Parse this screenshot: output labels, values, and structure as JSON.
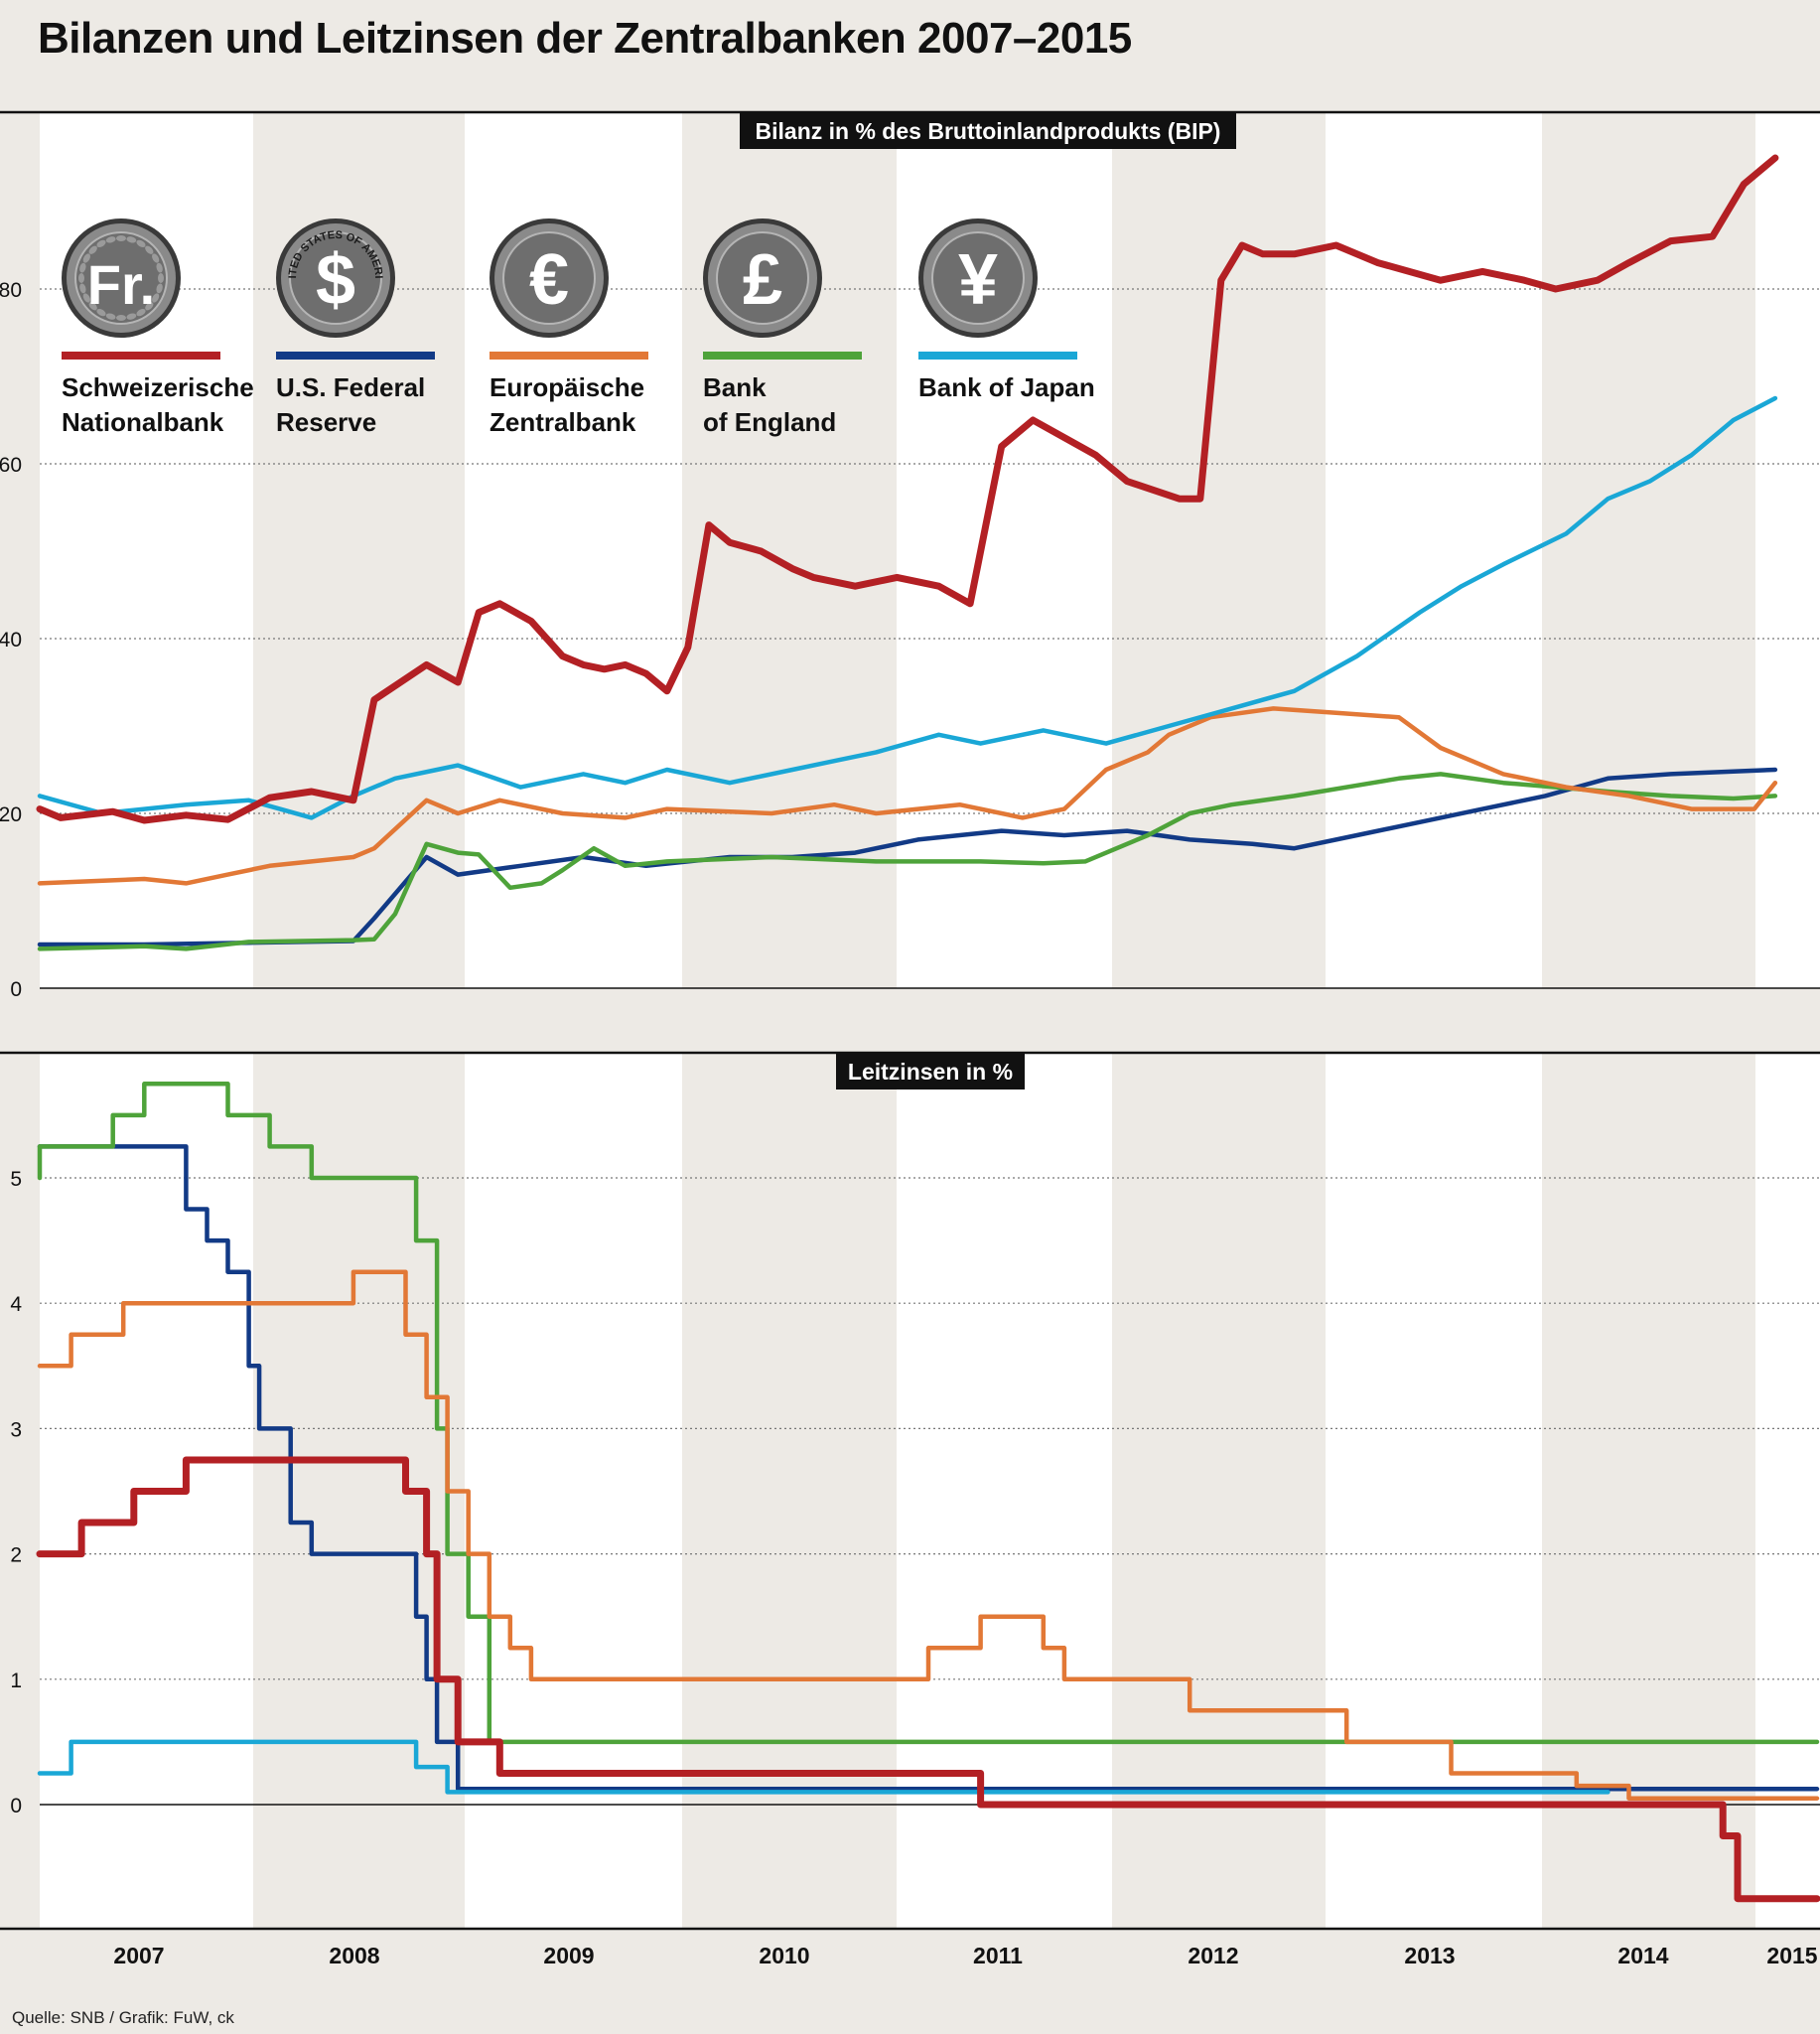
{
  "title": "Bilanzen und Leitzinsen der Zentralbanken 2007–2015",
  "source": "Quelle: SNB / Grafik: FuW, ck",
  "years": [
    "2007",
    "2008",
    "2009",
    "2010",
    "2011",
    "2012",
    "2013",
    "2014",
    "2015"
  ],
  "colors": {
    "snb": "#b32024",
    "fed": "#123a86",
    "ecb": "#e27836",
    "boe": "#4ea33a",
    "boj": "#1aa7d6",
    "band": "#edeae5",
    "white": "#ffffff",
    "grid": "#777777"
  },
  "legend": [
    {
      "key": "snb",
      "symbol": "Fr.",
      "icon": "swiss-franc-coin-icon",
      "label_line1": "Schweizerische",
      "label_line2": "Nationalbank"
    },
    {
      "key": "fed",
      "symbol": "$",
      "icon": "dollar-coin-icon",
      "coin_text": "UNITED STATES OF AMERICA",
      "label_line1": "U.S. Federal",
      "label_line2": "Reserve"
    },
    {
      "key": "ecb",
      "symbol": "€",
      "icon": "euro-coin-icon",
      "label_line1": "Europäische",
      "label_line2": "Zentralbank"
    },
    {
      "key": "boe",
      "symbol": "£",
      "icon": "pound-coin-icon",
      "label_line1": "Bank",
      "label_line2": "of England"
    },
    {
      "key": "boj",
      "symbol": "¥",
      "icon": "yen-coin-icon",
      "label_line1": "Bank of Japan",
      "label_line2": ""
    }
  ],
  "chart_data": [
    {
      "type": "line",
      "title": "Bilanz in % des Bruttoinlandprodukts (BIP)",
      "xlabel": "",
      "ylabel": "",
      "xlim": [
        2007.0,
        2015.5
      ],
      "ylim": [
        0,
        100
      ],
      "yticks": [
        0,
        20,
        40,
        60,
        80
      ],
      "grid": true,
      "series": [
        {
          "key": "snb",
          "name": "Schweizerische Nationalbank",
          "x": [
            2007.0,
            2007.1,
            2007.35,
            2007.5,
            2007.7,
            2007.9,
            2008.1,
            2008.3,
            2008.5,
            2008.6,
            2008.85,
            2009.0,
            2009.1,
            2009.2,
            2009.35,
            2009.5,
            2009.6,
            2009.7,
            2009.8,
            2009.9,
            2010.0,
            2010.1,
            2010.2,
            2010.3,
            2010.45,
            2010.6,
            2010.7,
            2010.9,
            2011.1,
            2011.3,
            2011.45,
            2011.6,
            2011.75,
            2012.05,
            2012.2,
            2012.45,
            2012.55,
            2012.65,
            2012.75,
            2012.85,
            2013.0,
            2013.2,
            2013.4,
            2013.7,
            2013.9,
            2014.1,
            2014.25,
            2014.45,
            2014.6,
            2014.8,
            2015.0,
            2015.15,
            2015.3
          ],
          "y": [
            20.5,
            19.5,
            20.2,
            19.2,
            19.8,
            19.3,
            21.8,
            22.5,
            21.5,
            33,
            37,
            35,
            43,
            44,
            42,
            38,
            37,
            36.5,
            37,
            36,
            34,
            39,
            53,
            51,
            50,
            48,
            47,
            46,
            47,
            46,
            44,
            62,
            65,
            61,
            58,
            56,
            56,
            81,
            85,
            84,
            84,
            85,
            83,
            81,
            82,
            81,
            80,
            81,
            83,
            85.5,
            86,
            92,
            95
          ]
        },
        {
          "key": "fed",
          "name": "U.S. Federal Reserve",
          "x": [
            2007.0,
            2007.5,
            2008.0,
            2008.5,
            2008.6,
            2008.85,
            2009.0,
            2009.3,
            2009.6,
            2009.9,
            2010.3,
            2010.6,
            2010.9,
            2011.2,
            2011.6,
            2011.9,
            2012.2,
            2012.5,
            2012.8,
            2013.0,
            2013.3,
            2013.6,
            2013.9,
            2014.2,
            2014.5,
            2014.8,
            2015.1,
            2015.3
          ],
          "y": [
            5,
            5,
            5.2,
            5.4,
            8,
            15,
            13,
            14,
            15,
            14,
            15,
            15,
            15.5,
            17,
            18,
            17.5,
            18,
            17,
            16.5,
            16,
            17.5,
            19,
            20.5,
            22,
            24,
            24.5,
            24.8,
            25
          ]
        },
        {
          "key": "ecb",
          "name": "Europäische Zentralbank",
          "x": [
            2007.0,
            2007.5,
            2007.7,
            2007.9,
            2008.1,
            2008.3,
            2008.5,
            2008.6,
            2008.85,
            2009.0,
            2009.2,
            2009.5,
            2009.8,
            2010.0,
            2010.5,
            2010.8,
            2011.0,
            2011.4,
            2011.7,
            2011.9,
            2012.1,
            2012.3,
            2012.4,
            2012.6,
            2012.9,
            2013.2,
            2013.5,
            2013.7,
            2014.0,
            2014.3,
            2014.6,
            2014.9,
            2015.2,
            2015.3
          ],
          "y": [
            12,
            12.5,
            12,
            13,
            14,
            14.5,
            15,
            16,
            21.5,
            20,
            21.5,
            20,
            19.5,
            20.5,
            20,
            21,
            20,
            21,
            19.5,
            20.5,
            25,
            27,
            29,
            31,
            32,
            31.5,
            31,
            27.5,
            24.5,
            23,
            22,
            20.5,
            20.5,
            23.5
          ]
        },
        {
          "key": "boe",
          "name": "Bank of England",
          "x": [
            2007.0,
            2007.5,
            2007.7,
            2008.0,
            2008.5,
            2008.6,
            2008.7,
            2008.85,
            2009.0,
            2009.1,
            2009.25,
            2009.4,
            2009.5,
            2009.65,
            2009.8,
            2010.0,
            2010.5,
            2011.0,
            2011.5,
            2011.8,
            2012.0,
            2012.3,
            2012.5,
            2012.7,
            2013.0,
            2013.5,
            2013.7,
            2014.0,
            2014.5,
            2014.8,
            2015.1,
            2015.3
          ],
          "y": [
            4.5,
            4.8,
            4.5,
            5.3,
            5.5,
            5.6,
            8.5,
            16.5,
            15.5,
            15.3,
            11.5,
            12,
            13.5,
            16,
            14,
            14.5,
            15,
            14.5,
            14.5,
            14.3,
            14.5,
            17.5,
            20,
            21,
            22,
            24,
            24.5,
            23.5,
            22.5,
            22,
            21.7,
            22
          ]
        },
        {
          "key": "boj",
          "name": "Bank of Japan",
          "x": [
            2007.0,
            2007.3,
            2007.5,
            2007.7,
            2008.0,
            2008.3,
            2008.5,
            2008.7,
            2008.9,
            2009.0,
            2009.3,
            2009.6,
            2009.8,
            2010.0,
            2010.3,
            2010.6,
            2010.8,
            2011.0,
            2011.3,
            2011.5,
            2011.8,
            2012.1,
            2012.4,
            2012.7,
            2013.0,
            2013.3,
            2013.6,
            2013.8,
            2014.0,
            2014.3,
            2014.5,
            2014.7,
            2014.9,
            2015.1,
            2015.3
          ],
          "y": [
            22,
            20,
            20.5,
            21,
            21.5,
            19.5,
            22,
            24,
            25,
            25.5,
            23,
            24.5,
            23.5,
            25,
            23.5,
            25,
            26,
            27,
            29,
            28,
            29.5,
            28,
            30,
            32,
            34,
            38,
            43,
            46,
            48.5,
            52,
            56,
            58,
            61,
            65,
            67.5
          ]
        }
      ]
    },
    {
      "type": "line",
      "title": "Leitzinsen in %",
      "xlabel": "",
      "ylabel": "",
      "xlim": [
        2007.0,
        2015.5
      ],
      "ylim": [
        -0.8,
        6.0
      ],
      "yticks": [
        0,
        1,
        2,
        3,
        4,
        5
      ],
      "grid": true,
      "series": [
        {
          "key": "snb",
          "name": "Schweizerische Nationalbank",
          "x": [
            2007.0,
            2007.2,
            2007.2,
            2007.45,
            2007.45,
            2007.7,
            2007.7,
            2008.75,
            2008.75,
            2008.85,
            2008.85,
            2008.9,
            2008.9,
            2009.0,
            2009.0,
            2009.2,
            2009.2,
            2011.5,
            2011.5,
            2015.05,
            2015.05,
            2015.12,
            2015.12,
            2015.5
          ],
          "y": [
            2,
            2,
            2.25,
            2.25,
            2.5,
            2.5,
            2.75,
            2.75,
            2.5,
            2.5,
            2,
            2,
            1,
            1,
            0.5,
            0.5,
            0.25,
            0.25,
            0,
            0,
            -0.25,
            -0.25,
            -0.75,
            -0.75
          ]
        },
        {
          "key": "fed",
          "name": "U.S. Federal Reserve",
          "x": [
            2007.0,
            2007.7,
            2007.7,
            2007.8,
            2007.8,
            2007.9,
            2007.9,
            2008.0,
            2008.0,
            2008.05,
            2008.05,
            2008.2,
            2008.2,
            2008.3,
            2008.3,
            2008.8,
            2008.8,
            2008.85,
            2008.85,
            2008.9,
            2008.9,
            2009.0,
            2009.0,
            2015.5
          ],
          "y": [
            5.25,
            5.25,
            4.75,
            4.75,
            4.5,
            4.5,
            4.25,
            4.25,
            3.5,
            3.5,
            3,
            3,
            2.25,
            2.25,
            2,
            2,
            1.5,
            1.5,
            1,
            1,
            0.5,
            0.5,
            0.125,
            0.125
          ]
        },
        {
          "key": "ecb",
          "name": "Europäische Zentralbank",
          "x": [
            2007.0,
            2007.15,
            2007.15,
            2007.4,
            2007.4,
            2008.5,
            2008.5,
            2008.75,
            2008.75,
            2008.85,
            2008.85,
            2008.95,
            2008.95,
            2009.05,
            2009.05,
            2009.15,
            2009.15,
            2009.25,
            2009.25,
            2009.35,
            2009.35,
            2011.25,
            2011.25,
            2011.5,
            2011.5,
            2011.8,
            2011.8,
            2011.9,
            2011.9,
            2012.5,
            2012.5,
            2013.25,
            2013.25,
            2013.75,
            2013.75,
            2014.35,
            2014.35,
            2014.6,
            2014.6,
            2015.5
          ],
          "y": [
            3.5,
            3.5,
            3.75,
            3.75,
            4,
            4,
            4.25,
            4.25,
            3.75,
            3.75,
            3.25,
            3.25,
            2.5,
            2.5,
            2,
            2,
            1.5,
            1.5,
            1.25,
            1.25,
            1,
            1,
            1.25,
            1.25,
            1.5,
            1.5,
            1.25,
            1.25,
            1,
            1,
            0.75,
            0.75,
            0.5,
            0.5,
            0.25,
            0.25,
            0.15,
            0.15,
            0.05,
            0.05
          ]
        },
        {
          "key": "boe",
          "name": "Bank of England",
          "x": [
            2007.0,
            2007.0,
            2007.35,
            2007.35,
            2007.5,
            2007.5,
            2007.9,
            2007.9,
            2008.1,
            2008.1,
            2008.3,
            2008.3,
            2008.8,
            2008.8,
            2008.9,
            2008.9,
            2008.95,
            2008.95,
            2009.05,
            2009.05,
            2009.15,
            2009.15,
            2015.5
          ],
          "y": [
            5,
            5.25,
            5.25,
            5.5,
            5.5,
            5.75,
            5.75,
            5.5,
            5.5,
            5.25,
            5.25,
            5,
            5,
            4.5,
            4.5,
            3,
            3,
            2,
            2,
            1.5,
            1.5,
            0.5,
            0.5
          ]
        },
        {
          "key": "boj",
          "name": "Bank of Japan",
          "x": [
            2007.0,
            2007.15,
            2007.15,
            2008.8,
            2008.8,
            2008.95,
            2008.95,
            2014.5
          ],
          "y": [
            0.25,
            0.25,
            0.5,
            0.5,
            0.3,
            0.3,
            0.1,
            0.1
          ]
        }
      ]
    }
  ]
}
